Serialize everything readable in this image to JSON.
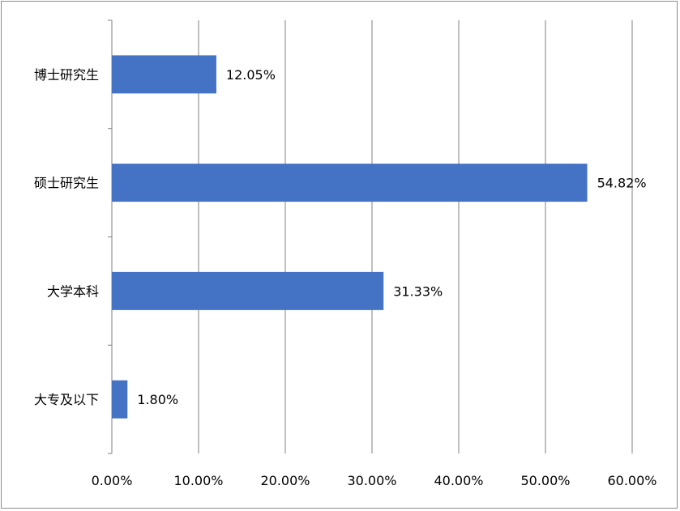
{
  "chart_data": {
    "type": "bar",
    "orientation": "horizontal",
    "title": "",
    "xlabel": "",
    "ylabel": "",
    "categories": [
      "博士研究生",
      "硕士研究生",
      "大学本科",
      "大专及以下"
    ],
    "values": [
      12.05,
      54.82,
      31.33,
      1.8
    ],
    "data_labels": [
      "12.05%",
      "54.82%",
      "31.33%",
      "1.80%"
    ],
    "x_ticks": [
      "0.00%",
      "10.00%",
      "20.00%",
      "30.00%",
      "40.00%",
      "50.00%",
      "60.00%"
    ],
    "xlim": [
      0,
      60
    ],
    "grid": "vertical",
    "legend": "none",
    "bar_color": "#4472C4",
    "grid_color": "#808080"
  }
}
